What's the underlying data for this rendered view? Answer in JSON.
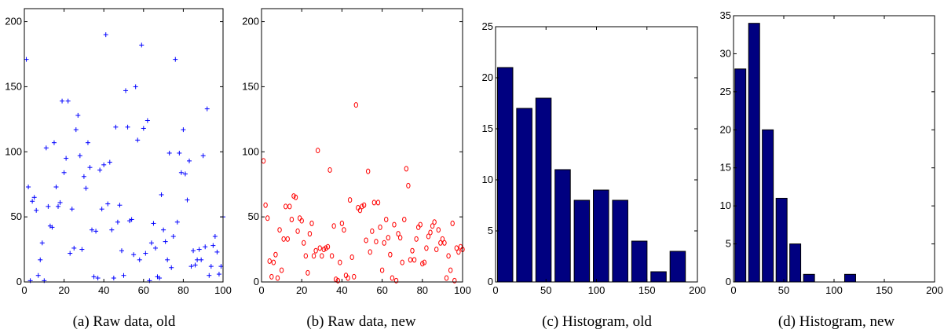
{
  "chart_data": [
    {
      "type": "scatter",
      "caption": "(a) Raw data, old",
      "marker": "plus",
      "color": "#0000ff",
      "xlim": [
        0,
        100
      ],
      "ylim": [
        0,
        210
      ],
      "xticks": [
        0,
        20,
        40,
        60,
        80,
        100
      ],
      "yticks": [
        0,
        50,
        100,
        150,
        200
      ],
      "x": [
        1,
        2,
        3,
        4,
        5,
        6,
        7,
        8,
        9,
        10,
        11,
        12,
        13,
        14,
        15,
        16,
        17,
        18,
        19,
        20,
        21,
        22,
        23,
        24,
        25,
        26,
        27,
        28,
        29,
        30,
        31,
        32,
        33,
        34,
        35,
        36,
        37,
        38,
        39,
        40,
        41,
        42,
        43,
        44,
        45,
        46,
        47,
        48,
        49,
        50,
        51,
        52,
        53,
        54,
        55,
        56,
        57,
        58,
        59,
        60,
        61,
        62,
        63,
        64,
        65,
        66,
        67,
        68,
        69,
        70,
        71,
        72,
        73,
        74,
        75,
        76,
        77,
        78,
        79,
        80,
        81,
        82,
        83,
        84,
        85,
        86,
        87,
        88,
        89,
        90,
        91,
        92,
        93,
        94,
        95,
        96,
        97,
        98,
        99,
        100
      ],
      "y": [
        171,
        73,
        1,
        62,
        65,
        55,
        5,
        17,
        30,
        1,
        103,
        58,
        43,
        42,
        107,
        73,
        58,
        61,
        139,
        84,
        95,
        139,
        22,
        56,
        26,
        117,
        128,
        97,
        25,
        81,
        72,
        107,
        88,
        40,
        4,
        39,
        3,
        86,
        56,
        90,
        190,
        60,
        92,
        40,
        3,
        119,
        46,
        59,
        24,
        5,
        147,
        119,
        47,
        48,
        21,
        150,
        109,
        17,
        182,
        118,
        22,
        124,
        1,
        30,
        45,
        26,
        4,
        3,
        67,
        40,
        31,
        17,
        99,
        11,
        35,
        171,
        46,
        99,
        84,
        117,
        83,
        63,
        93,
        12,
        24,
        13,
        17,
        25,
        17,
        97,
        27,
        133,
        5,
        12,
        28,
        35,
        23,
        6,
        12,
        50
      ]
    },
    {
      "type": "scatter",
      "caption": "(b) Raw data, new",
      "marker": "circle",
      "color": "#ff0000",
      "xlim": [
        0,
        100
      ],
      "ylim": [
        0,
        210
      ],
      "xticks": [
        0,
        20,
        40,
        60,
        80,
        100
      ],
      "yticks": [
        0,
        50,
        100,
        150,
        200
      ],
      "x": [
        1,
        2,
        3,
        4,
        5,
        6,
        7,
        8,
        9,
        10,
        11,
        12,
        13,
        14,
        15,
        16,
        17,
        18,
        19,
        20,
        21,
        22,
        23,
        24,
        25,
        26,
        27,
        28,
        29,
        30,
        31,
        32,
        33,
        34,
        35,
        36,
        37,
        38,
        39,
        40,
        41,
        42,
        43,
        44,
        45,
        46,
        47,
        48,
        49,
        50,
        51,
        52,
        53,
        54,
        55,
        56,
        57,
        58,
        59,
        60,
        61,
        62,
        63,
        64,
        65,
        66,
        67,
        68,
        69,
        70,
        71,
        72,
        73,
        74,
        75,
        76,
        77,
        78,
        79,
        80,
        81,
        82,
        83,
        84,
        85,
        86,
        87,
        88,
        89,
        90,
        91,
        92,
        93,
        94,
        95,
        96,
        97,
        98,
        99,
        100
      ],
      "y": [
        93,
        59,
        49,
        16,
        4,
        15,
        21,
        3,
        40,
        9,
        33,
        58,
        33,
        58,
        48,
        66,
        65,
        39,
        49,
        47,
        30,
        20,
        7,
        37,
        45,
        20,
        24,
        101,
        26,
        20,
        25,
        26,
        27,
        86,
        20,
        43,
        2,
        1,
        15,
        45,
        40,
        5,
        3,
        63,
        19,
        4,
        136,
        57,
        55,
        58,
        59,
        32,
        85,
        23,
        39,
        61,
        31,
        61,
        42,
        9,
        30,
        48,
        34,
        21,
        3,
        44,
        1,
        37,
        34,
        15,
        48,
        87,
        74,
        17,
        24,
        17,
        33,
        42,
        44,
        14,
        15,
        26,
        35,
        38,
        43,
        46,
        25,
        40,
        30,
        33,
        30,
        3,
        20,
        9,
        45,
        1,
        26,
        23,
        27,
        25
      ]
    },
    {
      "type": "bar",
      "caption": "(c) Histogram, old",
      "color": "#000080",
      "xlim": [
        0,
        200
      ],
      "ylim": [
        0,
        25
      ],
      "xticks": [
        0,
        50,
        100,
        150,
        200
      ],
      "yticks": [
        0,
        5,
        10,
        15,
        20,
        25
      ],
      "bin_centers": [
        9.5,
        28.5,
        47.5,
        66.5,
        85.5,
        104.5,
        123.5,
        142.5,
        161.5,
        180.5
      ],
      "bin_width": 19,
      "values": [
        21,
        17,
        18,
        11,
        8,
        9,
        8,
        4,
        1,
        3
      ]
    },
    {
      "type": "bar",
      "caption": "(d) Histogram, new",
      "color": "#000080",
      "xlim": [
        0,
        200
      ],
      "ylim": [
        0,
        35
      ],
      "xticks": [
        0,
        50,
        100,
        150,
        200
      ],
      "yticks": [
        0,
        5,
        10,
        15,
        20,
        25,
        30,
        35
      ],
      "bin_centers": [
        6.8,
        20.5,
        34.1,
        47.8,
        61.4,
        75.1,
        88.7,
        102.4,
        116,
        129.7,
        143.3
      ],
      "bin_width": 13.65,
      "values": [
        28,
        34,
        20,
        11,
        5,
        1,
        0,
        0,
        1,
        0,
        0
      ]
    }
  ]
}
